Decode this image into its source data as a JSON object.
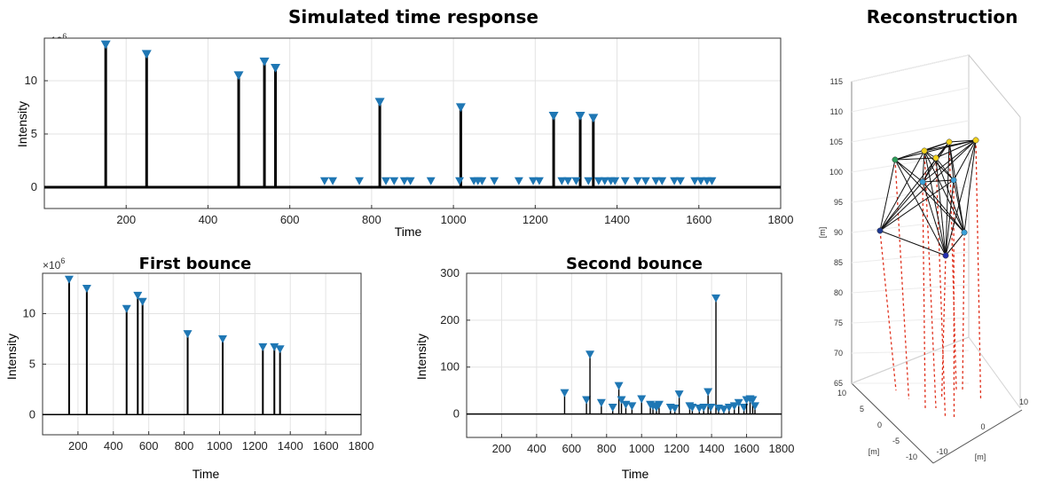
{
  "chart_data": [
    {
      "id": "simulated",
      "type": "stem",
      "title": "Simulated time response",
      "xlabel": "Time",
      "ylabel": "Intensity",
      "exponent_label": "×10",
      "exponent_power": "6",
      "xlim": [
        0,
        1800
      ],
      "ylim": [
        -2,
        14
      ],
      "xticks": [
        200,
        400,
        600,
        800,
        1000,
        1200,
        1400,
        1600,
        1800
      ],
      "yticks": [
        0,
        5,
        10
      ],
      "grid": true,
      "peaks": [
        {
          "x": 150,
          "y": 13.3
        },
        {
          "x": 250,
          "y": 12.4
        },
        {
          "x": 475,
          "y": 10.4
        },
        {
          "x": 538,
          "y": 11.7
        },
        {
          "x": 565,
          "y": 11.1
        },
        {
          "x": 820,
          "y": 7.9
        },
        {
          "x": 1018,
          "y": 7.4
        },
        {
          "x": 1245,
          "y": 6.6
        },
        {
          "x": 1310,
          "y": 6.6
        },
        {
          "x": 1342,
          "y": 6.4
        }
      ],
      "small_peaks_x": [
        685,
        705,
        770,
        835,
        855,
        880,
        895,
        945,
        1015,
        1050,
        1060,
        1070,
        1100,
        1160,
        1195,
        1210,
        1265,
        1280,
        1300,
        1330,
        1355,
        1370,
        1385,
        1395,
        1420,
        1450,
        1470,
        1495,
        1510,
        1540,
        1555,
        1590,
        1605,
        1620,
        1632
      ]
    },
    {
      "id": "first",
      "type": "stem",
      "title": "First bounce",
      "xlabel": "Time",
      "ylabel": "Intensity",
      "exponent_label": "×10",
      "exponent_power": "6",
      "xlim": [
        0,
        1800
      ],
      "ylim": [
        -2,
        14
      ],
      "xticks": [
        200,
        400,
        600,
        800,
        1000,
        1200,
        1400,
        1600,
        1800
      ],
      "yticks": [
        0,
        5,
        10
      ],
      "grid": true,
      "peaks": [
        {
          "x": 150,
          "y": 13.3
        },
        {
          "x": 250,
          "y": 12.4
        },
        {
          "x": 475,
          "y": 10.4
        },
        {
          "x": 538,
          "y": 11.7
        },
        {
          "x": 565,
          "y": 11.1
        },
        {
          "x": 820,
          "y": 7.9
        },
        {
          "x": 1018,
          "y": 7.4
        },
        {
          "x": 1245,
          "y": 6.6
        },
        {
          "x": 1310,
          "y": 6.6
        },
        {
          "x": 1342,
          "y": 6.4
        }
      ]
    },
    {
      "id": "second",
      "type": "stem",
      "title": "Second bounce",
      "xlabel": "Time",
      "ylabel": "Intensity",
      "xlim": [
        0,
        1800
      ],
      "ylim": [
        -50,
        300
      ],
      "xticks": [
        200,
        400,
        600,
        800,
        1000,
        1200,
        1400,
        1600,
        1800
      ],
      "yticks": [
        0,
        100,
        200,
        300
      ],
      "grid": true,
      "peaks": [
        {
          "x": 560,
          "y": 43
        },
        {
          "x": 685,
          "y": 28
        },
        {
          "x": 705,
          "y": 125
        },
        {
          "x": 770,
          "y": 22
        },
        {
          "x": 835,
          "y": 12
        },
        {
          "x": 870,
          "y": 58
        },
        {
          "x": 885,
          "y": 28
        },
        {
          "x": 910,
          "y": 18
        },
        {
          "x": 945,
          "y": 15
        },
        {
          "x": 1000,
          "y": 30
        },
        {
          "x": 1050,
          "y": 18
        },
        {
          "x": 1065,
          "y": 15
        },
        {
          "x": 1085,
          "y": 12
        },
        {
          "x": 1100,
          "y": 18
        },
        {
          "x": 1165,
          "y": 12
        },
        {
          "x": 1190,
          "y": 10
        },
        {
          "x": 1215,
          "y": 40
        },
        {
          "x": 1275,
          "y": 15
        },
        {
          "x": 1290,
          "y": 12
        },
        {
          "x": 1330,
          "y": 10
        },
        {
          "x": 1355,
          "y": 12
        },
        {
          "x": 1380,
          "y": 45
        },
        {
          "x": 1395,
          "y": 12
        },
        {
          "x": 1425,
          "y": 245
        },
        {
          "x": 1440,
          "y": 10
        },
        {
          "x": 1470,
          "y": 8
        },
        {
          "x": 1500,
          "y": 12
        },
        {
          "x": 1530,
          "y": 15
        },
        {
          "x": 1555,
          "y": 22
        },
        {
          "x": 1585,
          "y": 12
        },
        {
          "x": 1600,
          "y": 28
        },
        {
          "x": 1620,
          "y": 30
        },
        {
          "x": 1635,
          "y": 28
        },
        {
          "x": 1648,
          "y": 15
        }
      ]
    },
    {
      "id": "reconstruction",
      "type": "scatter3d",
      "title": "Reconstruction",
      "zlabel": "[m]",
      "xlabel": "[m]",
      "ylabel": "[m]",
      "zticks": [
        65,
        70,
        75,
        80,
        85,
        90,
        95,
        100,
        105,
        110,
        115
      ],
      "xticks": [
        -10,
        0,
        10
      ],
      "yticks": [
        10,
        5,
        0,
        -5,
        -10
      ],
      "node_colors": [
        "#1f3a93",
        "#2d9e5b",
        "#f2d21b",
        "#f2d21b",
        "#f2d21b",
        "#f2d21b",
        "#3aa0d8",
        "#3aa0d8",
        "#3aa0d8",
        "#2430b0"
      ]
    }
  ],
  "colors": {
    "stem": "#000000",
    "marker": "#1f77b4",
    "grid": "#e3e3e3",
    "projection": "#e0321e",
    "edge": "#111111"
  }
}
